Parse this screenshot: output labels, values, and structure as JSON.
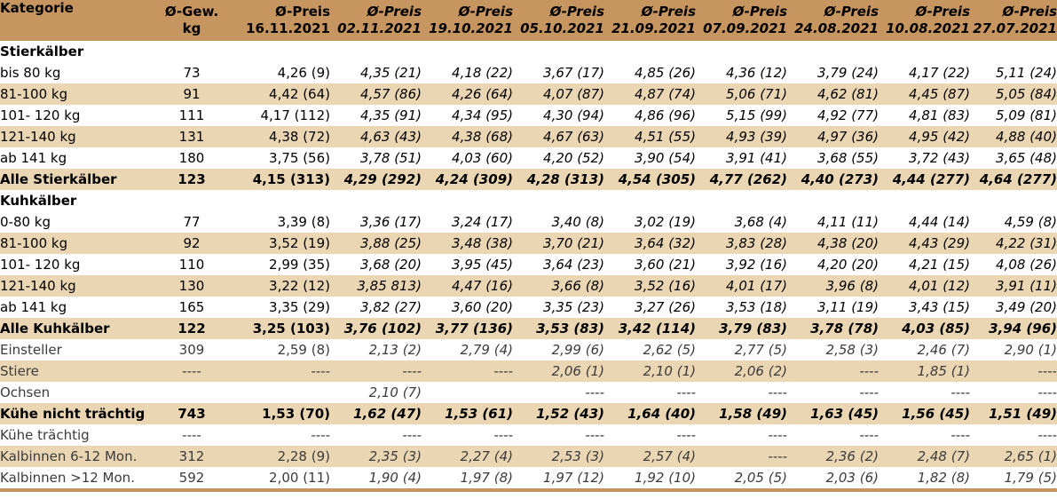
{
  "header": {
    "kategorie": "Kategorie",
    "gew_line1": "Ø-Gew.",
    "gew_line2": "kg",
    "price_label": "Ø-Preis",
    "dates": [
      "16.11.2021",
      "02.11.2021",
      "19.10.2021",
      "05.10.2021",
      "21.09.2021",
      "07.09.2021",
      "24.08.2021",
      "10.08.2021",
      "27.07.2021"
    ]
  },
  "colors": {
    "header_bg": "#c7955f",
    "band": "#ebd6b3",
    "white": "#ffffff"
  },
  "rows": [
    {
      "type": "section",
      "label": "Stierkälber"
    },
    {
      "type": "data",
      "label": "bis 80 kg",
      "gew": "73",
      "values": [
        "4,26 (9)",
        "4,35 (21)",
        "4,18 (22)",
        "3,67 (17)",
        "4,85 (26)",
        "4,36 (12)",
        "3,79 (24)",
        "4,17 (22)",
        "5,11 (24)"
      ]
    },
    {
      "type": "data",
      "label": "81-100 kg",
      "gew": "91",
      "values": [
        "4,42 (64)",
        "4,57 (86)",
        "4,26 (64)",
        "4,07 (87)",
        "4,87 (74)",
        "5,06 (71)",
        "4,62 (81)",
        "4,45 (87)",
        "5,05 (84)"
      ]
    },
    {
      "type": "data",
      "label": "101- 120 kg",
      "gew": "111",
      "values": [
        "4,17 (112)",
        "4,35 (91)",
        "4,34 (95)",
        "4,30 (94)",
        "4,86 (96)",
        "5,15 (99)",
        "4,92 (77)",
        "4,81 (83)",
        "5,09 (81)"
      ]
    },
    {
      "type": "data",
      "label": "121-140 kg",
      "gew": "131",
      "values": [
        "4,38 (72)",
        "4,63 (43)",
        "4,38 (68)",
        "4,67 (63)",
        "4,51 (55)",
        "4,93 (39)",
        "4,97 (36)",
        "4,95 (42)",
        "4,88 (40)"
      ]
    },
    {
      "type": "data",
      "label": "ab 141 kg",
      "gew": "180",
      "values": [
        "3,75 (56)",
        "3,78 (51)",
        "4,03 (60)",
        "4,20 (52)",
        "3,90 (54)",
        "3,91 (41)",
        "3,68 (55)",
        "3,72 (43)",
        "3,65 (48)"
      ]
    },
    {
      "type": "total",
      "label": "Alle Stierkälber",
      "gew": "123",
      "values": [
        "4,15 (313)",
        "4,29 (292)",
        "4,24 (309)",
        "4,28 (313)",
        "4,54 (305)",
        "4,77 (262)",
        "4,40 (273)",
        "4,44 (277)",
        "4,64 (277)"
      ]
    },
    {
      "type": "section",
      "label": "Kuhkälber"
    },
    {
      "type": "data",
      "label": "0-80 kg",
      "gew": "77",
      "values": [
        "3,39 (8)",
        "3,36 (17)",
        "3,24 (17)",
        "3,40 (8)",
        "3,02 (19)",
        "3,68 (4)",
        "4,11 (11)",
        "4,44 (14)",
        "4,59 (8)"
      ]
    },
    {
      "type": "data",
      "label": "81-100 kg",
      "gew": "92",
      "values": [
        "3,52 (19)",
        "3,88 (25)",
        "3,48 (38)",
        "3,70 (21)",
        "3,64 (32)",
        "3,83 (28)",
        "4,38 (20)",
        "4,43 (29)",
        "4,22 (31)"
      ]
    },
    {
      "type": "data",
      "label": "101- 120 kg",
      "gew": "110",
      "values": [
        "2,99 (35)",
        "3,68 (20)",
        "3,95 (45)",
        "3,64 (23)",
        "3,60 (21)",
        "3,92 (16)",
        "4,20 (20)",
        "4,21 (15)",
        "4,08 (26)"
      ]
    },
    {
      "type": "data",
      "label": "121-140 kg",
      "gew": "130",
      "values": [
        "3,22 (12)",
        "3,85 813)",
        "4,47 (16)",
        "3,66 (8)",
        "3,52 (16)",
        "4,01 (17)",
        "3,96 (8)",
        "4,01 (12)",
        "3,91 (11)"
      ]
    },
    {
      "type": "data",
      "label": "ab 141 kg",
      "gew": "165",
      "values": [
        "3,35 (29)",
        "3,82 (27)",
        "3,60 (20)",
        "3,35 (23)",
        "3,27 (26)",
        "3,53 (18)",
        "3,11 (19)",
        "3,43 (15)",
        "3,49 (20)"
      ]
    },
    {
      "type": "total",
      "label": "Alle Kuhkälber",
      "gew": "122",
      "values": [
        "3,25 (103)",
        "3,76 (102)",
        "3,77 (136)",
        "3,53 (83)",
        "3,42 (114)",
        "3,79 (83)",
        "3,78 (78)",
        "4,03 (85)",
        "3,94 (96)"
      ]
    },
    {
      "type": "other",
      "label": "Einsteller",
      "gew": "309",
      "values": [
        "2,59 (8)",
        "2,13 (2)",
        "2,79 (4)",
        "2,99 (6)",
        "2,62 (5)",
        "2,77 (5)",
        "2,58 (3)",
        "2,46 (7)",
        "2,90 (1)"
      ]
    },
    {
      "type": "other",
      "label": "Stiere",
      "gew": "----",
      "values": [
        "----",
        "----",
        "----",
        "2,06 (1)",
        "2,10 (1)",
        "2,06 (2)",
        "----",
        "1,85 (1)",
        "----"
      ]
    },
    {
      "type": "other",
      "label": "Ochsen",
      "gew": "",
      "values": [
        "",
        "2,10 (7)",
        "",
        "----",
        "----",
        "----",
        "----",
        "----",
        "----"
      ]
    },
    {
      "type": "total",
      "label": "Kühe nicht trächtig",
      "gew": "743",
      "values": [
        "1,53 (70)",
        "1,62 (47)",
        "1,53 (61)",
        "1,52 (43)",
        "1,64 (40)",
        "1,58 (49)",
        "1,63 (45)",
        "1,56 (45)",
        "1,51 (49)"
      ]
    },
    {
      "type": "other",
      "label": "Kühe trächtig",
      "gew": "----",
      "values": [
        "----",
        "----",
        "----",
        "----",
        "----",
        "----",
        "----",
        "----",
        "----"
      ]
    },
    {
      "type": "other",
      "label": "Kalbinnen 6-12 Mon.",
      "gew": "312",
      "values": [
        "2,28 (9)",
        "2,35 (3)",
        "2,27 (4)",
        "2,53 (3)",
        "2,57 (4)",
        "----",
        "2,36 (2)",
        "2,48 (7)",
        "2,65 (1)"
      ]
    },
    {
      "type": "other",
      "label": "Kalbinnen >12 Mon.",
      "gew": "592",
      "values": [
        "2,00 (11)",
        "1,90 (4)",
        "1,97 (8)",
        "1,97 (12)",
        "1,92 (10)",
        "2,05 (5)",
        "2,03 (6)",
        "1,82 (8)",
        "1,79 (5)"
      ]
    }
  ]
}
